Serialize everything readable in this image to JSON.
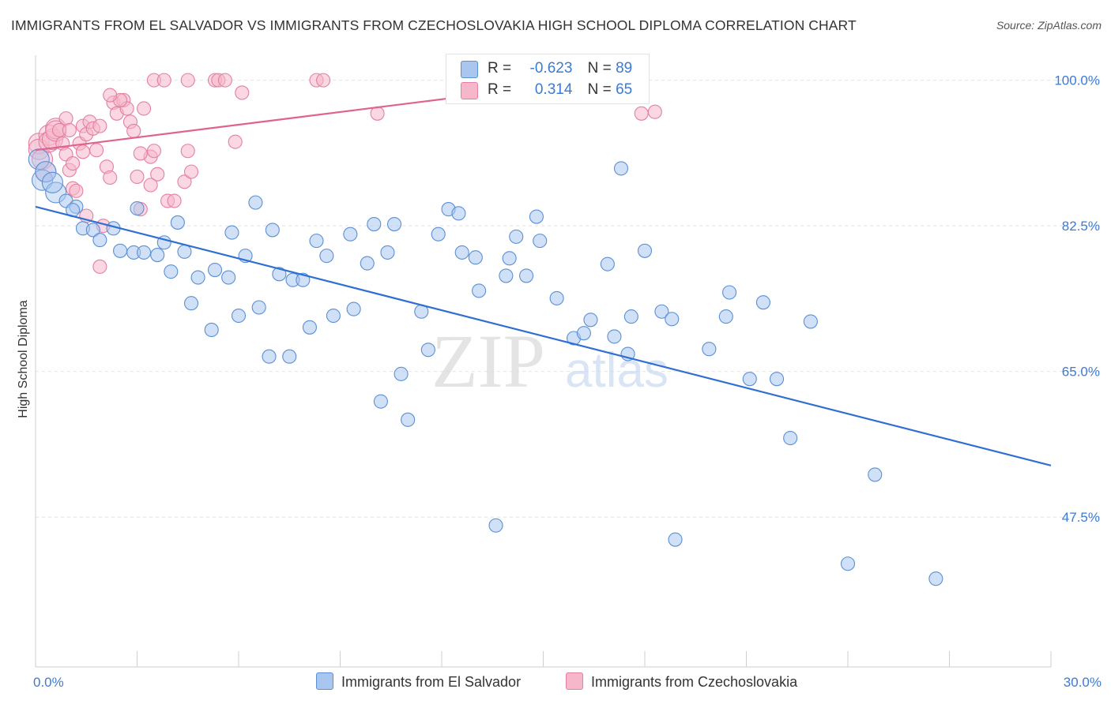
{
  "header": {
    "title": "IMMIGRANTS FROM EL SALVADOR VS IMMIGRANTS FROM CZECHOSLOVAKIA HIGH SCHOOL DIPLOMA CORRELATION CHART",
    "source": "Source: ZipAtlas.com"
  },
  "legend_top": {
    "rows": [
      {
        "r_label": "R =",
        "r_value": "-0.623",
        "n_label": "N =",
        "n_value": "89"
      },
      {
        "r_label": "R =",
        "r_value": "0.314",
        "n_label": "N =",
        "n_value": "65"
      }
    ]
  },
  "legend_bottom": [
    "Immigrants from El Salvador",
    "Immigrants from Czechoslovakia"
  ],
  "watermark": {
    "zip": "ZIP",
    "atlas": "atlas"
  },
  "colors": {
    "blue_fill": "#a9c6ee",
    "blue_stroke": "#5b8fd6",
    "blue_line": "#2f6fd1",
    "pink_fill": "#f6b7cb",
    "pink_stroke": "#e57fa0",
    "pink_line": "#e0638c",
    "tick_label": "#3a7bd5",
    "grid": "#e3e3e3"
  },
  "chart_data": {
    "type": "scatter",
    "title": "IMMIGRANTS FROM EL SALVADOR VS IMMIGRANTS FROM CZECHOSLOVAKIA HIGH SCHOOL DIPLOMA CORRELATION CHART",
    "xlabel": "",
    "ylabel": "High School Diploma",
    "xlim": [
      0,
      30
    ],
    "ylim": [
      29.5,
      103
    ],
    "x_tick_labels": [
      "0.0%",
      "30.0%"
    ],
    "x_tick_values": [
      0,
      30
    ],
    "y_tick_labels": [
      "100.0%",
      "82.5%",
      "65.0%",
      "47.5%"
    ],
    "y_tick_values": [
      100,
      82.5,
      65,
      47.5
    ],
    "grid": true,
    "legend_position": "top-center",
    "series": [
      {
        "name": "Immigrants from El Salvador",
        "r": -0.623,
        "n": 89,
        "trend": {
          "x": [
            0,
            30
          ],
          "y": [
            84.8,
            53.7
          ]
        },
        "points": [
          [
            0.1,
            90.5
          ],
          [
            0.2,
            88.0
          ],
          [
            0.6,
            86.5
          ],
          [
            0.9,
            85.5
          ],
          [
            1.2,
            84.8
          ],
          [
            1.1,
            84.4
          ],
          [
            1.4,
            82.2
          ],
          [
            1.7,
            82.0
          ],
          [
            2.3,
            82.2
          ],
          [
            1.9,
            80.8
          ],
          [
            2.5,
            79.5
          ],
          [
            2.9,
            79.3
          ],
          [
            3.2,
            79.3
          ],
          [
            3.6,
            79.0
          ],
          [
            3.0,
            84.6
          ],
          [
            3.8,
            80.5
          ],
          [
            4.0,
            77.0
          ],
          [
            4.2,
            82.9
          ],
          [
            4.4,
            79.4
          ],
          [
            4.6,
            73.2
          ],
          [
            4.8,
            76.3
          ],
          [
            5.3,
            77.2
          ],
          [
            5.7,
            76.3
          ],
          [
            5.2,
            70.0
          ],
          [
            5.8,
            81.7
          ],
          [
            6.0,
            71.7
          ],
          [
            6.2,
            78.9
          ],
          [
            6.5,
            85.3
          ],
          [
            6.6,
            72.7
          ],
          [
            6.9,
            66.8
          ],
          [
            7.0,
            82.0
          ],
          [
            7.2,
            76.7
          ],
          [
            7.5,
            66.8
          ],
          [
            7.6,
            76.0
          ],
          [
            7.9,
            76.0
          ],
          [
            8.1,
            70.3
          ],
          [
            8.3,
            80.7
          ],
          [
            8.6,
            78.9
          ],
          [
            8.8,
            71.7
          ],
          [
            9.3,
            81.5
          ],
          [
            9.4,
            72.5
          ],
          [
            9.8,
            78.0
          ],
          [
            10.0,
            82.7
          ],
          [
            10.4,
            79.3
          ],
          [
            10.6,
            82.7
          ],
          [
            10.2,
            61.4
          ],
          [
            10.8,
            64.7
          ],
          [
            11.0,
            59.2
          ],
          [
            11.4,
            72.2
          ],
          [
            11.6,
            67.6
          ],
          [
            11.9,
            81.5
          ],
          [
            12.2,
            84.5
          ],
          [
            12.5,
            84.0
          ],
          [
            12.6,
            79.3
          ],
          [
            13.0,
            78.7
          ],
          [
            13.1,
            74.7
          ],
          [
            13.6,
            46.5
          ],
          [
            13.9,
            76.5
          ],
          [
            14.0,
            78.6
          ],
          [
            14.2,
            81.2
          ],
          [
            14.5,
            76.5
          ],
          [
            14.8,
            83.6
          ],
          [
            14.9,
            80.7
          ],
          [
            15.4,
            73.8
          ],
          [
            15.9,
            69.0
          ],
          [
            16.2,
            69.6
          ],
          [
            16.4,
            71.2
          ],
          [
            16.9,
            77.9
          ],
          [
            17.1,
            69.2
          ],
          [
            17.5,
            67.1
          ],
          [
            17.6,
            71.6
          ],
          [
            18.0,
            79.5
          ],
          [
            17.3,
            89.4
          ],
          [
            18.5,
            72.2
          ],
          [
            18.8,
            71.3
          ],
          [
            18.9,
            44.8
          ],
          [
            19.9,
            67.7
          ],
          [
            20.4,
            71.6
          ],
          [
            20.5,
            74.5
          ],
          [
            21.1,
            64.1
          ],
          [
            21.5,
            73.3
          ],
          [
            21.9,
            64.1
          ],
          [
            22.3,
            57.0
          ],
          [
            22.9,
            71.0
          ],
          [
            24.0,
            41.9
          ],
          [
            24.8,
            52.6
          ],
          [
            26.6,
            40.1
          ],
          [
            0.3,
            89.0
          ],
          [
            0.5,
            87.7
          ]
        ]
      },
      {
        "name": "Immigrants from Czechoslovakia",
        "r": 0.314,
        "n": 65,
        "trend": {
          "x": [
            0,
            16.7
          ],
          "y": [
            91.6,
            100.1
          ]
        },
        "points": [
          [
            0.1,
            92.4
          ],
          [
            0.1,
            91.7
          ],
          [
            0.2,
            90.5
          ],
          [
            0.3,
            89.0
          ],
          [
            0.4,
            93.4
          ],
          [
            0.4,
            92.6
          ],
          [
            0.5,
            92.9
          ],
          [
            0.6,
            94.2
          ],
          [
            0.6,
            93.9
          ],
          [
            0.7,
            94.0
          ],
          [
            0.8,
            92.4
          ],
          [
            0.9,
            91.1
          ],
          [
            0.9,
            95.4
          ],
          [
            1.0,
            89.2
          ],
          [
            1.0,
            94.0
          ],
          [
            1.1,
            90.0
          ],
          [
            1.1,
            87.0
          ],
          [
            1.2,
            86.7
          ],
          [
            1.3,
            92.4
          ],
          [
            1.4,
            91.4
          ],
          [
            1.4,
            94.5
          ],
          [
            1.5,
            93.5
          ],
          [
            1.6,
            95.0
          ],
          [
            1.7,
            94.2
          ],
          [
            1.8,
            91.6
          ],
          [
            1.9,
            94.5
          ],
          [
            2.0,
            82.5
          ],
          [
            1.5,
            83.7
          ],
          [
            2.1,
            89.6
          ],
          [
            2.2,
            88.3
          ],
          [
            2.3,
            97.3
          ],
          [
            2.4,
            96.0
          ],
          [
            2.6,
            97.6
          ],
          [
            2.7,
            96.6
          ],
          [
            2.8,
            95.0
          ],
          [
            2.9,
            93.9
          ],
          [
            3.0,
            88.4
          ],
          [
            3.1,
            84.5
          ],
          [
            3.2,
            96.6
          ],
          [
            3.4,
            90.8
          ],
          [
            3.5,
            91.5
          ],
          [
            3.1,
            91.2
          ],
          [
            3.6,
            88.7
          ],
          [
            3.9,
            85.5
          ],
          [
            4.1,
            85.5
          ],
          [
            4.4,
            87.8
          ],
          [
            4.5,
            91.5
          ],
          [
            4.6,
            89.0
          ],
          [
            1.9,
            77.6
          ],
          [
            2.5,
            97.6
          ],
          [
            3.4,
            87.4
          ],
          [
            2.2,
            98.2
          ],
          [
            3.5,
            100.0
          ],
          [
            3.8,
            100.0
          ],
          [
            4.5,
            100.0
          ],
          [
            5.3,
            100.0
          ],
          [
            5.4,
            100.0
          ],
          [
            6.1,
            98.5
          ],
          [
            5.9,
            92.6
          ],
          [
            8.3,
            100.0
          ],
          [
            8.5,
            100.0
          ],
          [
            10.1,
            96.0
          ],
          [
            17.9,
            96.0
          ],
          [
            18.3,
            96.2
          ],
          [
            5.6,
            100.0
          ]
        ]
      }
    ]
  }
}
